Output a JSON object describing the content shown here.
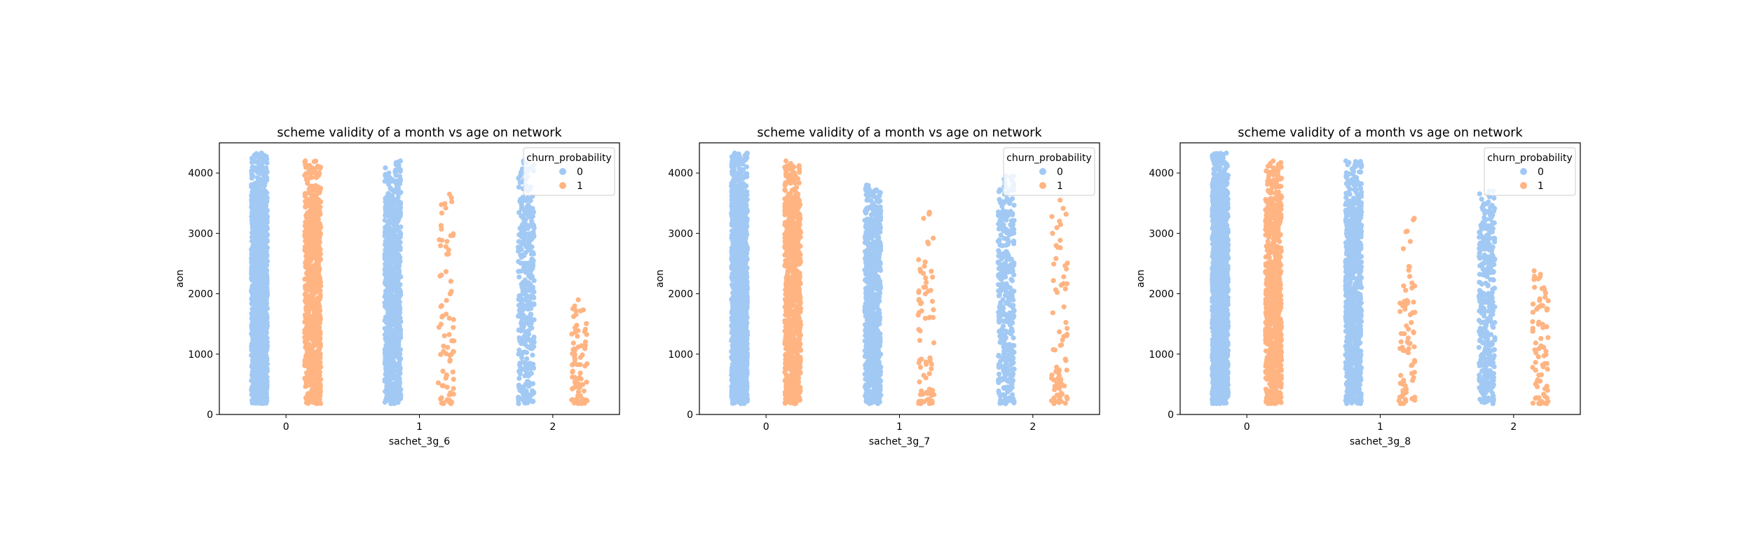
{
  "colors": {
    "no_churn": "#a1c9f4",
    "churn": "#ffb482",
    "axes": "#000000",
    "legend_border": "#cccccc"
  },
  "legend": {
    "title": "churn_probability",
    "labels": [
      "0",
      "1"
    ],
    "placement": "top-right"
  },
  "chart_data": [
    {
      "type": "scatter",
      "style": "strip",
      "title": "scheme validity of a month  vs age on network",
      "xlabel": "sachet_3g_6",
      "ylabel": "aon",
      "categories": [
        "0",
        "1",
        "2"
      ],
      "hue": "churn_probability",
      "ylim": [
        0,
        4500
      ],
      "yticks": [
        0,
        1000,
        2000,
        3000,
        4000
      ],
      "series": [
        {
          "name": "0",
          "color": "#a1c9f4",
          "groups": [
            {
              "category": "0",
              "range": [
                180,
                4330
              ],
              "density": "very high"
            },
            {
              "category": "1",
              "range": [
                180,
                4200
              ],
              "density": "high"
            },
            {
              "category": "2",
              "range": [
                180,
                4200
              ],
              "density": "medium"
            }
          ]
        },
        {
          "name": "1",
          "color": "#ffb482",
          "groups": [
            {
              "category": "0",
              "range": [
                180,
                4200
              ],
              "density": "high"
            },
            {
              "category": "1",
              "range": [
                180,
                3650
              ],
              "density": "low"
            },
            {
              "category": "2",
              "range": [
                180,
                1900
              ],
              "density": "low"
            }
          ]
        }
      ]
    },
    {
      "type": "scatter",
      "style": "strip",
      "title": "scheme validity of a month vs age on network",
      "xlabel": "sachet_3g_7",
      "ylabel": "aon",
      "categories": [
        "0",
        "1",
        "2"
      ],
      "hue": "churn_probability",
      "ylim": [
        0,
        4500
      ],
      "yticks": [
        0,
        1000,
        2000,
        3000,
        4000
      ],
      "series": [
        {
          "name": "0",
          "color": "#a1c9f4",
          "groups": [
            {
              "category": "0",
              "range": [
                180,
                4330
              ],
              "density": "very high"
            },
            {
              "category": "1",
              "range": [
                180,
                3800
              ],
              "density": "high"
            },
            {
              "category": "2",
              "range": [
                180,
                3950
              ],
              "density": "medium"
            }
          ]
        },
        {
          "name": "1",
          "color": "#ffb482",
          "groups": [
            {
              "category": "0",
              "range": [
                180,
                4200
              ],
              "density": "high"
            },
            {
              "category": "1",
              "range": [
                180,
                3350
              ],
              "density": "low"
            },
            {
              "category": "2",
              "range": [
                180,
                3550
              ],
              "density": "low"
            }
          ]
        }
      ]
    },
    {
      "type": "scatter",
      "style": "strip",
      "title": "scheme validity of a month vs age on network",
      "xlabel": "sachet_3g_8",
      "ylabel": "aon",
      "categories": [
        "0",
        "1",
        "2"
      ],
      "hue": "churn_probability",
      "ylim": [
        0,
        4500
      ],
      "yticks": [
        0,
        1000,
        2000,
        3000,
        4000
      ],
      "series": [
        {
          "name": "0",
          "color": "#a1c9f4",
          "groups": [
            {
              "category": "0",
              "range": [
                180,
                4330
              ],
              "density": "very high"
            },
            {
              "category": "1",
              "range": [
                180,
                4200
              ],
              "density": "high"
            },
            {
              "category": "2",
              "range": [
                180,
                3700
              ],
              "density": "medium"
            }
          ]
        },
        {
          "name": "1",
          "color": "#ffb482",
          "groups": [
            {
              "category": "0",
              "range": [
                180,
                4200
              ],
              "density": "high"
            },
            {
              "category": "1",
              "range": [
                180,
                3250
              ],
              "density": "low"
            },
            {
              "category": "2",
              "range": [
                180,
                2380
              ],
              "density": "low"
            }
          ]
        }
      ]
    }
  ]
}
